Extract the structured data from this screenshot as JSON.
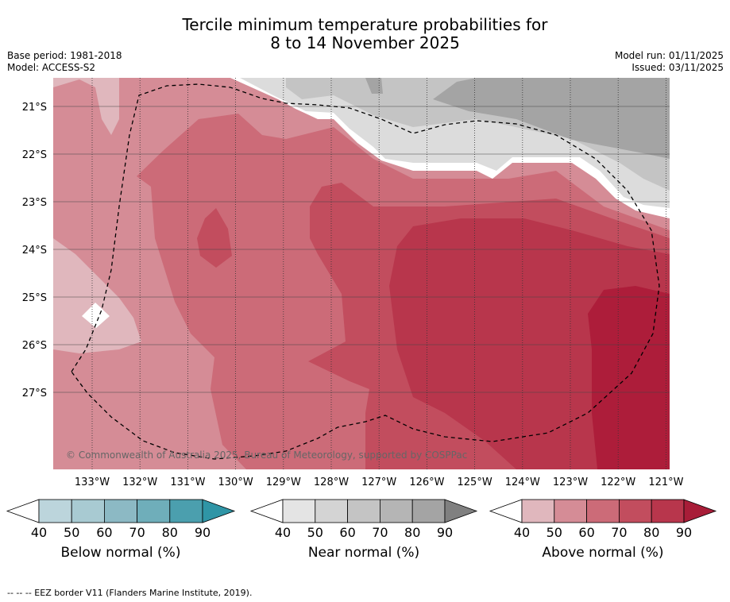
{
  "title": {
    "line1": "Tercile minimum temperature probabilities for",
    "line2": "8 to 14 November 2025"
  },
  "meta": {
    "base_period": "Base period: 1981-2018",
    "model": "Model: ACCESS-S2",
    "model_run": "Model run: 01/11/2025",
    "issued": "Issued: 03/11/2025"
  },
  "map": {
    "lat_labels": [
      "21°S",
      "22°S",
      "23°S",
      "24°S",
      "25°S",
      "26°S",
      "27°S"
    ],
    "lat_values": [
      -21,
      -22,
      -23,
      -24,
      -25,
      -26,
      -27
    ],
    "lon_labels": [
      "133°W",
      "132°W",
      "131°W",
      "130°W",
      "129°W",
      "128°W",
      "127°W",
      "126°W",
      "125°W",
      "124°W",
      "123°W",
      "122°W",
      "121°W"
    ],
    "lon_values": [
      -133,
      -132,
      -131,
      -130,
      -129,
      -128,
      -127,
      -126,
      -125,
      -124,
      -123,
      -122,
      -121
    ],
    "copyright": "© Commonwealth of Australia 2025, Bureau of Meteorology, supported by COSPPac"
  },
  "legends": [
    {
      "name": "below",
      "label": "Below normal (%)",
      "ticks": [
        "40",
        "50",
        "60",
        "70",
        "80",
        "90"
      ],
      "colors": [
        "#ffffff",
        "#bcd5dc",
        "#a8cad2",
        "#8cb9c4",
        "#6faeba",
        "#4b9fae",
        "#2f95a6"
      ]
    },
    {
      "name": "near",
      "label": "Near normal (%)",
      "ticks": [
        "40",
        "50",
        "60",
        "70",
        "80",
        "90"
      ],
      "colors": [
        "#ffffff",
        "#e4e4e4",
        "#d4d4d4",
        "#c4c4c4",
        "#b5b5b5",
        "#a4a4a4",
        "#808080"
      ]
    },
    {
      "name": "above",
      "label": "Above normal (%)",
      "ticks": [
        "40",
        "50",
        "60",
        "70",
        "80",
        "90"
      ],
      "colors": [
        "#ffffff",
        "#e0b7bd",
        "#d58c96",
        "#cc6b78",
        "#c24d5e",
        "#b8364c",
        "#a81d38"
      ]
    }
  ],
  "footnote": "--  --  -- EEZ border V11 (Flanders Marine Institute, 2019).",
  "colors": {
    "a50": "#e0b7bd",
    "a60": "#d58c96",
    "a70": "#cc6b78",
    "a80": "#c24d5e",
    "a90": "#b8364c",
    "a95": "#ad1d3a",
    "n50": "#dcdcdc",
    "n60": "#c4c4c4",
    "n70": "#a4a4a4"
  }
}
